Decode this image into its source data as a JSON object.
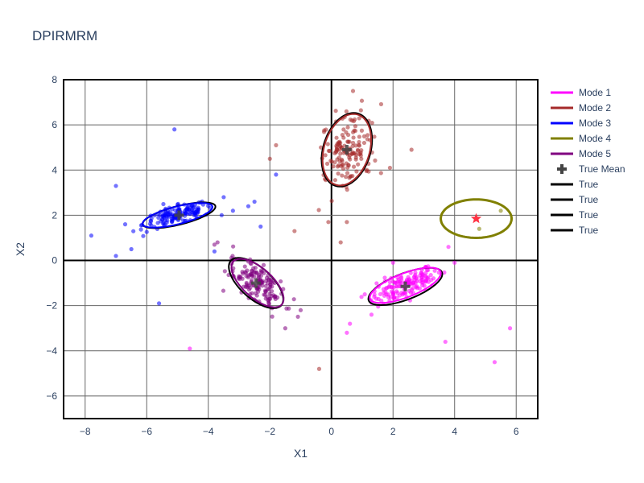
{
  "chart_data": {
    "type": "scatter",
    "title": "DPIRMRM",
    "xlabel": "X1",
    "ylabel": "X2",
    "xlim": [
      -8.7,
      6.7
    ],
    "ylim": [
      -7,
      8
    ],
    "xticks": [
      -8,
      -6,
      -4,
      -2,
      0,
      2,
      4,
      6
    ],
    "yticks": [
      -6,
      -4,
      -2,
      0,
      2,
      4,
      6,
      8
    ],
    "xtick_labels": [
      "−8",
      "−6",
      "−4",
      "−2",
      "0",
      "2",
      "4",
      "6"
    ],
    "ytick_labels": [
      "−6",
      "−4",
      "−2",
      "0",
      "2",
      "4",
      "6",
      "8"
    ],
    "grid": true,
    "legend_position": "right",
    "modes": [
      {
        "name": "Mode 1",
        "color": "#ff00ff",
        "center": [
          2.4,
          -1.1
        ],
        "a": 1.3,
        "b": 0.5,
        "angle_deg": 30,
        "count": 150,
        "outliers": [
          [
            5.8,
            -3.0
          ],
          [
            5.3,
            -4.5
          ],
          [
            3.7,
            -3.6
          ],
          [
            1.3,
            -2.4
          ],
          [
            0.6,
            -2.8
          ],
          [
            0.5,
            -3.2
          ],
          [
            3.8,
            0.6
          ],
          [
            4.0,
            -0.1
          ],
          [
            2.0,
            -0.1
          ],
          [
            -4.6,
            -3.9
          ]
        ]
      },
      {
        "name": "Mode 2",
        "color": "#a52a2a",
        "center": [
          0.5,
          4.9
        ],
        "a": 1.6,
        "b": 0.75,
        "angle_deg": 80,
        "count": 150,
        "outliers": [
          [
            2.6,
            4.9
          ],
          [
            -1.8,
            5.1
          ],
          [
            -2.0,
            4.5
          ],
          [
            -1.2,
            1.3
          ],
          [
            -0.1,
            1.7
          ],
          [
            0.5,
            1.7
          ],
          [
            0.3,
            0.8
          ],
          [
            0.7,
            7.5
          ],
          [
            -0.4,
            -4.8
          ],
          [
            1.9,
            4.1
          ]
        ]
      },
      {
        "name": "Mode 3",
        "color": "#0000ff",
        "center": [
          -5.0,
          2.0
        ],
        "a": 1.2,
        "b": 0.38,
        "angle_deg": 20,
        "count": 150,
        "outliers": [
          [
            -7.8,
            1.1
          ],
          [
            -7.0,
            3.3
          ],
          [
            -7.0,
            0.2
          ],
          [
            -6.7,
            1.6
          ],
          [
            -6.5,
            0.5
          ],
          [
            -5.1,
            5.8
          ],
          [
            -5.6,
            -1.9
          ],
          [
            -3.5,
            2.8
          ],
          [
            -3.2,
            2.2
          ],
          [
            -2.7,
            2.4
          ],
          [
            -2.5,
            2.6
          ],
          [
            -2.3,
            1.5
          ],
          [
            -1.8,
            3.8
          ],
          [
            -3.8,
            0.4
          ]
        ]
      },
      {
        "name": "Mode 4",
        "color": "#808000",
        "center": [
          4.7,
          1.85
        ],
        "a": 1.15,
        "b": 0.85,
        "angle_deg": 0,
        "count": 0,
        "outliers": [
          [
            5.5,
            2.2
          ],
          [
            4.8,
            1.4
          ]
        ]
      },
      {
        "name": "Mode 5",
        "color": "#800080",
        "center": [
          -2.4,
          -1.0
        ],
        "a": 1.25,
        "b": 0.55,
        "angle_deg": -55,
        "count": 150,
        "outliers": [
          [
            -3.7,
            0.8
          ],
          [
            -1.5,
            -3.0
          ],
          [
            -1.0,
            -2.2
          ],
          [
            -3.8,
            0.7
          ]
        ]
      }
    ],
    "true_mean": {
      "name": "True Mean",
      "color": "#444444",
      "points": [
        [
          2.4,
          -1.15
        ],
        [
          0.5,
          4.9
        ],
        [
          -4.95,
          2.0
        ],
        [
          -2.45,
          -1.0
        ]
      ]
    },
    "true_ellipses": {
      "name": "True",
      "color": "#000000",
      "items": [
        {
          "center": [
            2.4,
            -1.15
          ],
          "a": 1.35,
          "b": 0.55,
          "angle_deg": 30
        },
        {
          "center": [
            0.5,
            4.9
          ],
          "a": 1.65,
          "b": 0.78,
          "angle_deg": 80
        },
        {
          "center": [
            -4.95,
            2.0
          ],
          "a": 1.25,
          "b": 0.4,
          "angle_deg": 20
        },
        {
          "center": [
            -2.45,
            -1.0
          ],
          "a": 1.3,
          "b": 0.58,
          "angle_deg": -55
        }
      ]
    },
    "star": {
      "x": 4.7,
      "y": 1.85,
      "color": "#ff3344"
    },
    "legend": [
      {
        "label": "Mode 1",
        "color": "#ff00ff",
        "kind": "line"
      },
      {
        "label": "Mode 2",
        "color": "#a52a2a",
        "kind": "line"
      },
      {
        "label": "Mode 3",
        "color": "#0000ff",
        "kind": "line"
      },
      {
        "label": "Mode 4",
        "color": "#808000",
        "kind": "line"
      },
      {
        "label": "Mode 5",
        "color": "#800080",
        "kind": "line"
      },
      {
        "label": "True Mean",
        "color": "#444444",
        "kind": "cross"
      },
      {
        "label": "True",
        "color": "#000000",
        "kind": "line"
      },
      {
        "label": "True",
        "color": "#000000",
        "kind": "line"
      },
      {
        "label": "True",
        "color": "#000000",
        "kind": "line"
      },
      {
        "label": "True",
        "color": "#000000",
        "kind": "line"
      }
    ]
  }
}
